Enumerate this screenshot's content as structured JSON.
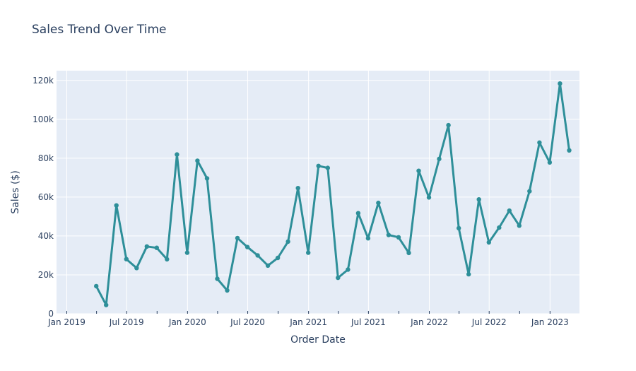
{
  "chart_data": {
    "type": "line",
    "title": "Sales Trend Over Time",
    "xlabel": "Order Date",
    "ylabel": "Sales ($)",
    "ylim": [
      0,
      125000
    ],
    "xlim": [
      "2018-12-01",
      "2023-03-31"
    ],
    "grid": true,
    "line_color": "#2e8f99",
    "plot_bg": "#e5ecf6",
    "grid_color": "#ffffff",
    "text_color": "#2a3f5f",
    "y_ticks": [
      {
        "value": 0,
        "label": "0"
      },
      {
        "value": 20000,
        "label": "20k"
      },
      {
        "value": 40000,
        "label": "40k"
      },
      {
        "value": 60000,
        "label": "60k"
      },
      {
        "value": 80000,
        "label": "80k"
      },
      {
        "value": 100000,
        "label": "100k"
      },
      {
        "value": 120000,
        "label": "120k"
      }
    ],
    "x_ticks": [
      {
        "value": "2019-01-01",
        "label": "Jan 2019"
      },
      {
        "value": "2019-07-01",
        "label": "Jul 2019"
      },
      {
        "value": "2020-01-01",
        "label": "Jan 2020"
      },
      {
        "value": "2020-07-01",
        "label": "Jul 2020"
      },
      {
        "value": "2021-01-01",
        "label": "Jan 2021"
      },
      {
        "value": "2021-07-01",
        "label": "Jul 2021"
      },
      {
        "value": "2022-01-01",
        "label": "Jan 2022"
      },
      {
        "value": "2022-07-01",
        "label": "Jul 2022"
      },
      {
        "value": "2023-01-01",
        "label": "Jan 2023"
      }
    ],
    "x": [
      "2019-03-31",
      "2019-04-30",
      "2019-05-31",
      "2019-06-30",
      "2019-07-31",
      "2019-08-31",
      "2019-09-30",
      "2019-10-31",
      "2019-11-30",
      "2019-12-31",
      "2020-01-31",
      "2020-02-29",
      "2020-03-31",
      "2020-04-30",
      "2020-05-31",
      "2020-06-30",
      "2020-07-31",
      "2020-08-31",
      "2020-09-30",
      "2020-10-31",
      "2020-11-30",
      "2020-12-31",
      "2021-01-31",
      "2021-02-28",
      "2021-03-31",
      "2021-04-30",
      "2021-05-31",
      "2021-06-30",
      "2021-07-31",
      "2021-08-31",
      "2021-09-30",
      "2021-10-31",
      "2021-11-30",
      "2021-12-31",
      "2022-01-31",
      "2022-02-28",
      "2022-03-31",
      "2022-04-30",
      "2022-05-31",
      "2022-06-30",
      "2022-07-31",
      "2022-08-31",
      "2022-09-30",
      "2022-10-31",
      "2022-11-30",
      "2022-12-31",
      "2023-01-31",
      "2023-02-28"
    ],
    "series": [
      {
        "values": [
          14200,
          4500,
          55700,
          28100,
          23500,
          34600,
          33900,
          28000,
          81900,
          31400,
          78700,
          69600,
          18000,
          12000,
          38900,
          34300,
          30000,
          24800,
          28700,
          37100,
          64600,
          31400,
          76000,
          75000,
          18500,
          22700,
          51700,
          38800,
          57000,
          40500,
          39300,
          31300,
          73500,
          59800,
          79600,
          97000,
          44000,
          20300,
          58800,
          36700,
          44300,
          53000,
          45300,
          63000,
          88000,
          77800,
          118400,
          84000
        ]
      }
    ]
  }
}
